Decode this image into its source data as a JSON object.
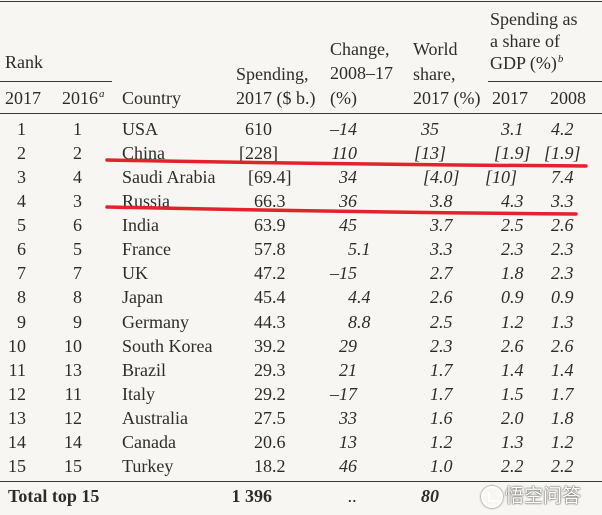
{
  "header": {
    "rank": "Rank",
    "rank_2017": "2017",
    "rank_2016": "2016",
    "rank_2016_note": "a",
    "country": "Country",
    "spending_l1": "Spending,",
    "spending_l2": "2017 ($ b.)",
    "change_l1": "Change,",
    "change_l2": "2008–17",
    "change_l3": "(%)",
    "share_l1": "World",
    "share_l2": "share,",
    "share_l3": "2017 (%)",
    "gdp_l1": "Spending as",
    "gdp_l2": "a share of",
    "gdp_l3": "GDP (%)",
    "gdp_note": "b",
    "gdp_2017": "2017",
    "gdp_2008": "2008"
  },
  "rows": [
    {
      "rank_2017": "1",
      "rank_2016": "1",
      "country": "USA",
      "spending": "610",
      "change": "–14",
      "world_share": "35",
      "gdp_2017": "3.1",
      "gdp_2008": "4.2"
    },
    {
      "rank_2017": "2",
      "rank_2016": "2",
      "country": "China",
      "spending": "[228]",
      "change": "110",
      "world_share": "[13]",
      "gdp_2017": "[1.9]",
      "gdp_2008": "[1.9]",
      "underlined": true
    },
    {
      "rank_2017": "3",
      "rank_2016": "4",
      "country": "Saudi Arabia",
      "spending": "[69.4]",
      "change": "34",
      "world_share": "[4.0]",
      "gdp_2017": "[10]",
      "gdp_2008": "7.4"
    },
    {
      "rank_2017": "4",
      "rank_2016": "3",
      "country": "Russia",
      "spending": "66.3",
      "change": "36",
      "world_share": "3.8",
      "gdp_2017": "4.3",
      "gdp_2008": "3.3",
      "underlined": true
    },
    {
      "rank_2017": "5",
      "rank_2016": "6",
      "country": "India",
      "spending": "63.9",
      "change": "45",
      "world_share": "3.7",
      "gdp_2017": "2.5",
      "gdp_2008": "2.6"
    },
    {
      "rank_2017": "6",
      "rank_2016": "5",
      "country": "France",
      "spending": "57.8",
      "change": "5.1",
      "world_share": "3.3",
      "gdp_2017": "2.3",
      "gdp_2008": "2.3"
    },
    {
      "rank_2017": "7",
      "rank_2016": "7",
      "country": "UK",
      "spending": "47.2",
      "change": "–15",
      "world_share": "2.7",
      "gdp_2017": "1.8",
      "gdp_2008": "2.3"
    },
    {
      "rank_2017": "8",
      "rank_2016": "8",
      "country": "Japan",
      "spending": "45.4",
      "change": "4.4",
      "world_share": "2.6",
      "gdp_2017": "0.9",
      "gdp_2008": "0.9"
    },
    {
      "rank_2017": "9",
      "rank_2016": "9",
      "country": "Germany",
      "spending": "44.3",
      "change": "8.8",
      "world_share": "2.5",
      "gdp_2017": "1.2",
      "gdp_2008": "1.3"
    },
    {
      "rank_2017": "10",
      "rank_2016": "10",
      "country": "South Korea",
      "spending": "39.2",
      "change": "29",
      "world_share": "2.3",
      "gdp_2017": "2.6",
      "gdp_2008": "2.6"
    },
    {
      "rank_2017": "11",
      "rank_2016": "13",
      "country": "Brazil",
      "spending": "29.3",
      "change": "21",
      "world_share": "1.7",
      "gdp_2017": "1.4",
      "gdp_2008": "1.4"
    },
    {
      "rank_2017": "12",
      "rank_2016": "11",
      "country": "Italy",
      "spending": "29.2",
      "change": "–17",
      "world_share": "1.7",
      "gdp_2017": "1.5",
      "gdp_2008": "1.7"
    },
    {
      "rank_2017": "13",
      "rank_2016": "12",
      "country": "Australia",
      "spending": "27.5",
      "change": "33",
      "world_share": "1.6",
      "gdp_2017": "2.0",
      "gdp_2008": "1.8"
    },
    {
      "rank_2017": "14",
      "rank_2016": "14",
      "country": "Canada",
      "spending": "20.6",
      "change": "13",
      "world_share": "1.2",
      "gdp_2017": "1.3",
      "gdp_2008": "1.2"
    },
    {
      "rank_2017": "15",
      "rank_2016": "15",
      "country": "Turkey",
      "spending": "18.2",
      "change": "46",
      "world_share": "1.0",
      "gdp_2017": "2.2",
      "gdp_2008": "2.2"
    }
  ],
  "total": {
    "label": "Total top 15",
    "spending": "1 396",
    "change": "..",
    "world_share": "80"
  },
  "colors": {
    "background": "#f7f6f2",
    "text": "#2c2c2c",
    "rule": "#3a3a3a",
    "annotation": "#e2232b"
  },
  "watermark": {
    "text": "悟空问答"
  }
}
